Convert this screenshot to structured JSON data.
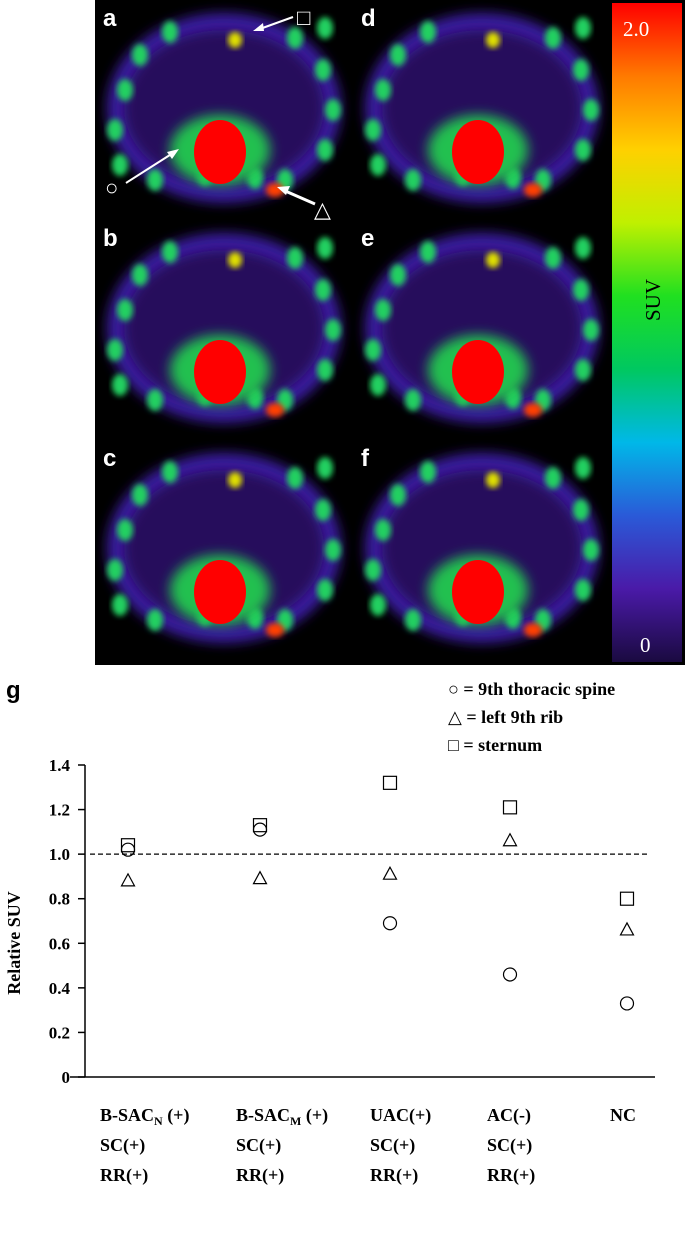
{
  "panels": [
    {
      "id": "a",
      "label": "a"
    },
    {
      "id": "b",
      "label": "b"
    },
    {
      "id": "c",
      "label": "c"
    },
    {
      "id": "d",
      "label": "d"
    },
    {
      "id": "e",
      "label": "e"
    },
    {
      "id": "f",
      "label": "f"
    }
  ],
  "colorbar": {
    "max_label": "2.0",
    "min_label": "0",
    "title": "SUV",
    "range": [
      0,
      2.0
    ],
    "colors": [
      "#1a0a40",
      "#4a1aa8",
      "#2a5ad8",
      "#00b8e8",
      "#00c860",
      "#20e020",
      "#c0f000",
      "#ffd000",
      "#ff7a00",
      "#ff0000"
    ]
  },
  "markers": {
    "circle_label": "○",
    "triangle_label": "△",
    "square_label": "□"
  },
  "legend": [
    {
      "marker": "circle",
      "text": "○ = 9th thoracic spine"
    },
    {
      "marker": "triangle",
      "text": "△ = left 9th rib"
    },
    {
      "marker": "square",
      "text": "□ = sternum"
    }
  ],
  "panel_g": {
    "label": "g"
  },
  "chart_data": {
    "type": "scatter",
    "ylabel": "Relative SUV",
    "ylim": [
      0,
      1.4
    ],
    "yticks": [
      "0",
      "0.2",
      "0.4",
      "0.6",
      "0.8",
      "1.0",
      "1.2",
      "1.4"
    ],
    "ytick_values": [
      0,
      0.2,
      0.4,
      0.6,
      0.8,
      1.0,
      1.2,
      1.4
    ],
    "reference_line": 1.0,
    "categories": [
      {
        "lines": [
          {
            "main": "B-SAC",
            "sub": "N",
            "suffix": " (+)"
          },
          {
            "main": "SC(+)"
          },
          {
            "main": "RR(+)"
          }
        ]
      },
      {
        "lines": [
          {
            "main": "B-SAC",
            "sub": "M",
            "suffix": " (+)"
          },
          {
            "main": "SC(+)"
          },
          {
            "main": "RR(+)"
          }
        ]
      },
      {
        "lines": [
          {
            "main": "UAC(+)"
          },
          {
            "main": "SC(+)"
          },
          {
            "main": "RR(+)"
          }
        ]
      },
      {
        "lines": [
          {
            "main": "AC(-)"
          },
          {
            "main": "SC(+)"
          },
          {
            "main": "RR(+)"
          }
        ]
      },
      {
        "lines": [
          {
            "main": "NC"
          }
        ]
      }
    ],
    "series": [
      {
        "name": "9th thoracic spine",
        "marker": "circle",
        "values": [
          1.02,
          1.11,
          0.69,
          0.46,
          0.33
        ]
      },
      {
        "name": "left 9th rib",
        "marker": "triangle",
        "values": [
          0.88,
          0.89,
          0.91,
          1.06,
          0.66
        ]
      },
      {
        "name": "sternum",
        "marker": "square",
        "values": [
          1.04,
          1.13,
          1.32,
          1.21,
          0.8
        ]
      }
    ]
  }
}
